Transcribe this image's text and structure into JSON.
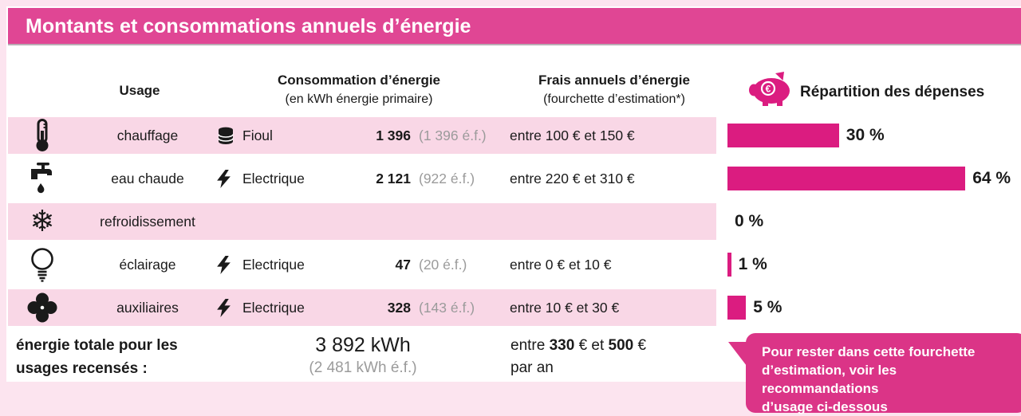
{
  "title": "Montants et consommations annuels d’énergie",
  "colors": {
    "banner_pink": "#e04694",
    "bar_pink": "#db1c80",
    "callout_pink": "#db3487",
    "row_stripe_pink": "#f9d7e6",
    "page_background_pink": "#fce4ef",
    "muted_gray": "#9b9b9b",
    "text": "#1a1a1a"
  },
  "header": {
    "usage": "Usage",
    "consumption_title": "Consommation d’énergie",
    "consumption_sub": "(en kWh énergie primaire)",
    "cost_title": "Frais annuels d’énergie",
    "cost_sub": "(fourchette d’estimation*)",
    "distribution_title": "Répartition des dépenses",
    "distribution_icon": "piggy-bank-euro-icon"
  },
  "rows": [
    {
      "icon": "thermometer-icon",
      "usage": "chauffage",
      "carrier_icon": "oil-barrel-icon",
      "carrier": "Fioul",
      "consumption": "1 396",
      "consumption_ef": "(1 396 é.f.)",
      "cost": "entre 100 € et 150 €",
      "pct": 30,
      "pct_label": "30 %"
    },
    {
      "icon": "faucet-icon",
      "usage": "eau chaude",
      "carrier_icon": "lightning-icon",
      "carrier": "Electrique",
      "consumption": "2 121",
      "consumption_ef": "(922 é.f.)",
      "cost": "entre 220 € et 310 €",
      "pct": 64,
      "pct_label": "64 %"
    },
    {
      "icon": "snowflake-icon",
      "usage": "refroidissement",
      "carrier_icon": "",
      "carrier": "",
      "consumption": "",
      "consumption_ef": "",
      "cost": "",
      "pct": 0,
      "pct_label": "0 %"
    },
    {
      "icon": "light-bulb-icon",
      "usage": "éclairage",
      "carrier_icon": "lightning-icon",
      "carrier": "Electrique",
      "consumption": "47",
      "consumption_ef": "(20 é.f.)",
      "cost": "entre 0 € et 10 €",
      "pct": 1,
      "pct_label": "1 %"
    },
    {
      "icon": "fan-icon",
      "usage": "auxiliaires",
      "carrier_icon": "lightning-icon",
      "carrier": "Electrique",
      "consumption": "328",
      "consumption_ef": "(143 é.f.)",
      "cost": "entre 10 € et 30 €",
      "pct": 5,
      "pct_label": "5 %"
    }
  ],
  "total": {
    "label": "énergie totale pour les usages recensés :",
    "value": "3 892 kWh",
    "value_ef": "(2 481 kWh é.f.)",
    "cost_prefix": "entre ",
    "cost_low": "330",
    "cost_mid": " € et ",
    "cost_high": "500",
    "cost_suffix": " €",
    "cost_line2": "par an"
  },
  "callout": {
    "line1": "Pour rester dans cette fourchette",
    "line2": "d’estimation, voir les recommandations",
    "line3": "d’usage ci-dessous"
  },
  "chart_data": {
    "type": "bar",
    "orientation": "horizontal",
    "title": "Répartition des dépenses",
    "categories": [
      "chauffage",
      "eau chaude",
      "refroidissement",
      "éclairage",
      "auxiliaires"
    ],
    "values": [
      30,
      64,
      0,
      1,
      5
    ],
    "unit": "%",
    "xlim": [
      0,
      70
    ],
    "bar_color": "#db1c80"
  }
}
